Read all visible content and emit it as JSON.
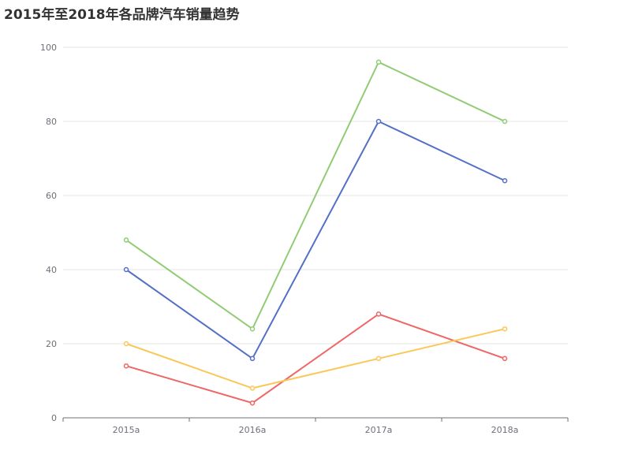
{
  "chart_data": {
    "type": "line",
    "title": "2015年至2018年各品牌汽车销量趋势",
    "xlabel": "",
    "ylabel": "",
    "categories": [
      "2015a",
      "2016a",
      "2017a",
      "2018a"
    ],
    "ylim": [
      0,
      100
    ],
    "yticks": [
      0,
      20,
      40,
      60,
      80,
      100
    ],
    "grid": true,
    "legend": "none",
    "series": [
      {
        "color": "#91cc75",
        "values": [
          48,
          24,
          96,
          80
        ]
      },
      {
        "color": "#5470c6",
        "values": [
          40,
          16,
          80,
          64
        ]
      },
      {
        "color": "#ee6666",
        "values": [
          14,
          4,
          28,
          16
        ]
      },
      {
        "color": "#fac858",
        "values": [
          20,
          8,
          16,
          24
        ]
      }
    ]
  }
}
